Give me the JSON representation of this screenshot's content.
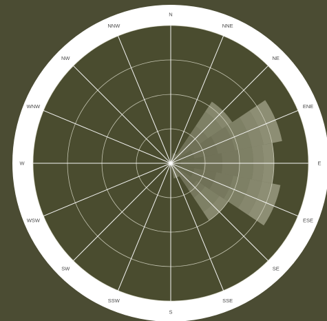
{
  "colors": {
    "background": "#4b4c33",
    "ring": "#ffffff",
    "plot_area": "#4a4c2f",
    "grid": "#d9d9c8",
    "label": "#4a4a4a",
    "wedge": "#d8d8c4"
  },
  "chart_data": {
    "type": "polar-bar",
    "title": "",
    "directions": [
      "N",
      "NNE",
      "NE",
      "ENE",
      "E",
      "ESE",
      "SE",
      "SSE",
      "S",
      "SSW",
      "SW",
      "WSW",
      "W",
      "WNW",
      "NW",
      "NNW"
    ],
    "radial_max": 4,
    "radial_gridlines": 4,
    "grid": true,
    "series": [
      {
        "values": [
          0,
          0,
          0,
          0.05,
          0.05,
          0.05,
          0,
          0,
          0,
          0,
          0,
          0,
          0,
          0,
          0,
          0
        ]
      },
      {
        "values": [
          0,
          0,
          0,
          0.2,
          0.25,
          0.2,
          0,
          0,
          0,
          0,
          0,
          0,
          0,
          0,
          0,
          0
        ]
      },
      {
        "values": [
          0,
          0,
          0,
          0.45,
          0.65,
          0.45,
          0,
          0,
          0,
          0,
          0,
          0,
          0,
          0,
          0,
          0
        ]
      },
      {
        "values": [
          0,
          0.3,
          1.0,
          0.7,
          0.55,
          0.65,
          0.9,
          0.25,
          0,
          0,
          0,
          0,
          0,
          0,
          0,
          0
        ]
      },
      {
        "values": [
          0,
          0,
          0.3,
          0.5,
          0.5,
          0.5,
          0.3,
          0.2,
          0,
          0,
          0,
          0,
          0,
          0,
          0,
          0
        ]
      },
      {
        "values": [
          0,
          0,
          0.5,
          0.5,
          0.4,
          0.5,
          0.5,
          0,
          0,
          0,
          0,
          0,
          0,
          0,
          0,
          0
        ]
      },
      {
        "values": [
          0,
          0,
          0.35,
          0.35,
          0.3,
          0.35,
          0.3,
          0,
          0,
          0,
          0,
          0,
          0,
          0,
          0,
          0
        ]
      },
      {
        "values": [
          0,
          0,
          0,
          0.55,
          0.3,
          0.55,
          0,
          0,
          0,
          0,
          0,
          0,
          0,
          0,
          0,
          0
        ]
      }
    ]
  }
}
